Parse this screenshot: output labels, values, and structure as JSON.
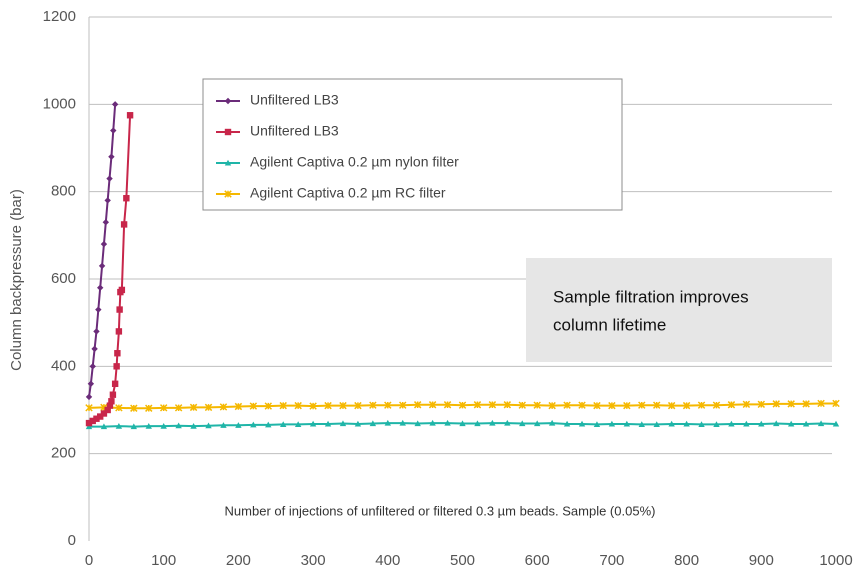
{
  "chart_data": {
    "type": "line",
    "y_label": "Column backpressure (bar)",
    "annotation": "Number of injections of unfiltered or filtered 0.3 µm beads. Sample (0.05%)",
    "callout": [
      "Sample filtration improves",
      "column lifetime"
    ],
    "xlim": [
      0,
      1000
    ],
    "xticks": [
      0,
      100,
      200,
      300,
      400,
      500,
      600,
      700,
      800,
      900,
      1000
    ],
    "ylim": [
      0,
      1200
    ],
    "yticks": [
      0,
      200,
      400,
      600,
      800,
      1000,
      1200
    ],
    "grid": true,
    "series": [
      {
        "name": "Unfiltered LB3",
        "color": "#6b2c7a",
        "marker": "diamond",
        "x": [
          0,
          2.5,
          5,
          7.5,
          10,
          12.5,
          15,
          17.5,
          20,
          22.5,
          25,
          27.5,
          30,
          32.5,
          35
        ],
        "values": [
          330,
          360,
          400,
          440,
          480,
          530,
          580,
          630,
          680,
          730,
          780,
          830,
          880,
          940,
          1000
        ]
      },
      {
        "name": "Unfiltered LB3",
        "color": "#c8264a",
        "marker": "square",
        "x": [
          0,
          5,
          10,
          15,
          20,
          25,
          28,
          30,
          32,
          35,
          37,
          38,
          40,
          41,
          42,
          44,
          47,
          50,
          55
        ],
        "values": [
          270,
          275,
          280,
          285,
          292,
          300,
          310,
          320,
          335,
          360,
          400,
          430,
          480,
          530,
          570,
          575,
          725,
          785,
          975
        ]
      },
      {
        "name": "Agilent Captiva 0.2 µm nylon filter",
        "color": "#1fb5a8",
        "marker": "triangle",
        "x": [
          0,
          20,
          40,
          60,
          80,
          100,
          120,
          140,
          160,
          180,
          200,
          220,
          240,
          260,
          280,
          300,
          320,
          340,
          360,
          380,
          400,
          420,
          440,
          460,
          480,
          500,
          520,
          540,
          560,
          580,
          600,
          620,
          640,
          660,
          680,
          700,
          720,
          740,
          760,
          780,
          800,
          820,
          840,
          860,
          880,
          900,
          920,
          940,
          960,
          980,
          1000
        ],
        "values": [
          262,
          262,
          263,
          262,
          263,
          263,
          264,
          263,
          264,
          265,
          265,
          266,
          266,
          267,
          267,
          268,
          268,
          269,
          268,
          269,
          270,
          270,
          269,
          270,
          270,
          269,
          269,
          270,
          270,
          269,
          269,
          270,
          268,
          268,
          267,
          268,
          268,
          267,
          267,
          268,
          268,
          267,
          267,
          268,
          268,
          268,
          269,
          268,
          268,
          269,
          268
        ]
      },
      {
        "name": "Agilent Captiva 0.2 µm RC filter",
        "color": "#f5b800",
        "marker": "x",
        "x": [
          0,
          20,
          40,
          60,
          80,
          100,
          120,
          140,
          160,
          180,
          200,
          220,
          240,
          260,
          280,
          300,
          320,
          340,
          360,
          380,
          400,
          420,
          440,
          460,
          480,
          500,
          520,
          540,
          560,
          580,
          600,
          620,
          640,
          660,
          680,
          700,
          720,
          740,
          760,
          780,
          800,
          820,
          840,
          860,
          880,
          900,
          920,
          940,
          960,
          980,
          1000
        ],
        "values": [
          305,
          306,
          305,
          304,
          304,
          305,
          305,
          306,
          306,
          307,
          308,
          309,
          309,
          310,
          310,
          309,
          310,
          310,
          310,
          311,
          311,
          311,
          312,
          312,
          312,
          311,
          312,
          312,
          312,
          311,
          311,
          310,
          311,
          311,
          310,
          310,
          310,
          311,
          311,
          310,
          310,
          311,
          311,
          312,
          313,
          313,
          314,
          314,
          314,
          315,
          315
        ]
      }
    ]
  }
}
